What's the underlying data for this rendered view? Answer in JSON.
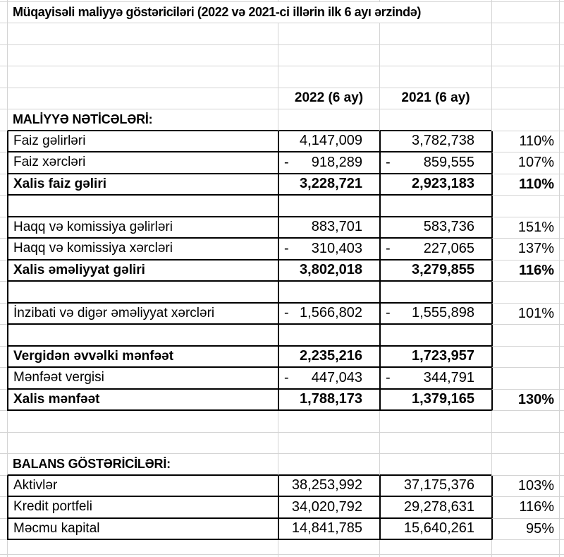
{
  "negative_sign": "-",
  "colors": {
    "gridline": "#d4d4d4",
    "cell_border": "#000000",
    "background": "#ffffff",
    "text": "#000000"
  },
  "rows": [
    {
      "type": "title",
      "label": "Müqayisəli maliyyə göstəriciləri (2022 və 2021-ci illərin ilk 6 ayı ərzində)"
    },
    {
      "type": "blank"
    },
    {
      "type": "blank"
    },
    {
      "type": "blank"
    },
    {
      "type": "header",
      "v2022": "2022 (6 ay)",
      "v2021": "2021 (6 ay)"
    },
    {
      "type": "section",
      "label": "MALİYYƏ NƏTİCƏLƏRİ:",
      "pre_block": true
    },
    {
      "type": "data",
      "label": "Faiz gəlirləri",
      "v2022": "4,147,009",
      "v2021": "3,782,738",
      "pct": "110%",
      "bordered": true
    },
    {
      "type": "data",
      "label": "Faiz xərcləri",
      "v2022": "918,289",
      "v2021": "859,555",
      "pct": "107%",
      "negative": true,
      "bordered": true
    },
    {
      "type": "data",
      "label": "Xalis faiz gəliri",
      "v2022": "3,228,721",
      "v2021": "2,923,183",
      "pct": "110%",
      "bold": true,
      "bordered": true
    },
    {
      "type": "gap",
      "bordered": true
    },
    {
      "type": "data",
      "label": "Haqq və komissiya gəlirləri",
      "v2022": "883,701",
      "v2021": "583,736",
      "pct": "151%",
      "bordered": true
    },
    {
      "type": "data",
      "label": "Haqq və komissiya xərcləri",
      "v2022": "310,403",
      "v2021": "227,065",
      "pct": "137%",
      "negative": true,
      "bordered": true
    },
    {
      "type": "data",
      "label": "Xalis əməliyyat gəliri",
      "v2022": "3,802,018",
      "v2021": "3,279,855",
      "pct": "116%",
      "bold": true,
      "bordered": true
    },
    {
      "type": "gap",
      "bordered": true
    },
    {
      "type": "data",
      "label": "İnzibati və digər əməliyyat xərcləri",
      "v2022": "1,566,802",
      "v2021": "1,555,898",
      "pct": "101%",
      "negative": true,
      "bordered": true
    },
    {
      "type": "gap",
      "bordered": true
    },
    {
      "type": "data",
      "label": "Vergidən əvvəlki mənfəət",
      "v2022": "2,235,216",
      "v2021": "1,723,957",
      "bold": true,
      "bordered": true
    },
    {
      "type": "data",
      "label": "Mənfəət vergisi",
      "v2022": "447,043",
      "v2021": "344,791",
      "negative": true,
      "bordered": true
    },
    {
      "type": "data",
      "label": "Xalis mənfəət",
      "v2022": "1,788,173",
      "v2021": "1,379,165",
      "pct": "130%",
      "bold": true,
      "bordered": true
    },
    {
      "type": "blank"
    },
    {
      "type": "blank"
    },
    {
      "type": "section",
      "label": "BALANS GÖSTƏRİCİLƏRİ:",
      "pre_block": true
    },
    {
      "type": "data",
      "label": "Aktivlər",
      "v2022": "38,253,992",
      "v2021": "37,175,376",
      "pct": "103%",
      "bordered": true
    },
    {
      "type": "data",
      "label": "Kredit portfeli",
      "v2022": "34,020,792",
      "v2021": "29,278,631",
      "pct": "116%",
      "bordered": true
    },
    {
      "type": "data",
      "label": "Məcmu kapital",
      "v2022": "14,841,785",
      "v2021": "15,640,261",
      "pct": "95%",
      "bordered": true
    },
    {
      "type": "blank"
    },
    {
      "type": "blank"
    }
  ]
}
